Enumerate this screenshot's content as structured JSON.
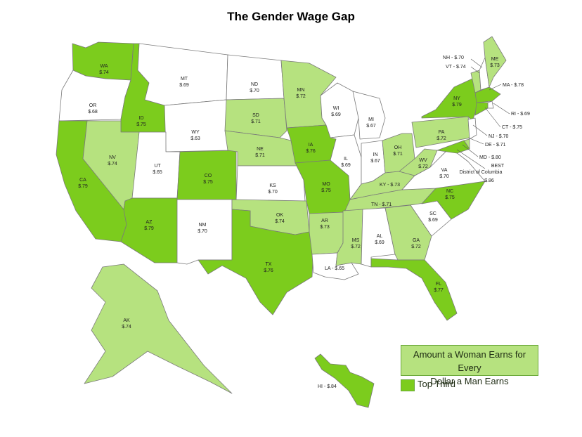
{
  "title": "The Gender Wage Gap",
  "colors": {
    "top_third": "#7ccc1d",
    "middle_third": "#b6e27f",
    "bottom_third": "#ffffff",
    "border": "#7a7a7a"
  },
  "legend": {
    "middle_line1": "Amount a Woman Earns for Every",
    "middle_line2": "Dollar a Man Earns",
    "top_label": "Top Third"
  },
  "states": [
    {
      "code": "WA",
      "value": "$.74",
      "tier": "top"
    },
    {
      "code": "OR",
      "value": "$.68",
      "tier": "bottom"
    },
    {
      "code": "CA",
      "value": "$.79",
      "tier": "top"
    },
    {
      "code": "ID",
      "value": "$.75",
      "tier": "top"
    },
    {
      "code": "NV",
      "value": "$.74",
      "tier": "middle"
    },
    {
      "code": "MT",
      "value": "$.69",
      "tier": "bottom"
    },
    {
      "code": "WY",
      "value": "$.63",
      "tier": "bottom"
    },
    {
      "code": "UT",
      "value": "$.65",
      "tier": "bottom"
    },
    {
      "code": "AZ",
      "value": "$.79",
      "tier": "top"
    },
    {
      "code": "CO",
      "value": "$.75",
      "tier": "top"
    },
    {
      "code": "NM",
      "value": "$.70",
      "tier": "bottom"
    },
    {
      "code": "ND",
      "value": "$.70",
      "tier": "bottom"
    },
    {
      "code": "SD",
      "value": "$.71",
      "tier": "middle"
    },
    {
      "code": "NE",
      "value": "$.71",
      "tier": "middle"
    },
    {
      "code": "KS",
      "value": "$.70",
      "tier": "bottom"
    },
    {
      "code": "OK",
      "value": "$.74",
      "tier": "middle"
    },
    {
      "code": "TX",
      "value": "$.76",
      "tier": "top"
    },
    {
      "code": "MN",
      "value": "$.72",
      "tier": "middle"
    },
    {
      "code": "IA",
      "value": "$.76",
      "tier": "top"
    },
    {
      "code": "MO",
      "value": "$.75",
      "tier": "top"
    },
    {
      "code": "AR",
      "value": "$.73",
      "tier": "middle"
    },
    {
      "code": "LA",
      "value": "$.65",
      "tier": "bottom"
    },
    {
      "code": "WI",
      "value": "$.69",
      "tier": "bottom"
    },
    {
      "code": "IL",
      "value": "$.69",
      "tier": "bottom"
    },
    {
      "code": "MI",
      "value": "$.67",
      "tier": "bottom"
    },
    {
      "code": "IN",
      "value": "$.67",
      "tier": "bottom"
    },
    {
      "code": "OH",
      "value": "$.71",
      "tier": "middle"
    },
    {
      "code": "KY",
      "value": "$.73",
      "tier": "middle"
    },
    {
      "code": "TN",
      "value": "$.71",
      "tier": "middle"
    },
    {
      "code": "MS",
      "value": "$.72",
      "tier": "middle"
    },
    {
      "code": "AL",
      "value": "$.69",
      "tier": "bottom"
    },
    {
      "code": "GA",
      "value": "$.72",
      "tier": "middle"
    },
    {
      "code": "FL",
      "value": "$.77",
      "tier": "top"
    },
    {
      "code": "SC",
      "value": "$.69",
      "tier": "bottom"
    },
    {
      "code": "NC",
      "value": "$.75",
      "tier": "top"
    },
    {
      "code": "VA",
      "value": "$.70",
      "tier": "bottom"
    },
    {
      "code": "WV",
      "value": "$.72",
      "tier": "middle"
    },
    {
      "code": "PA",
      "value": "$.72",
      "tier": "middle"
    },
    {
      "code": "NY",
      "value": "$.79",
      "tier": "top"
    },
    {
      "code": "VT",
      "value": "$.74",
      "tier": "middle"
    },
    {
      "code": "NH",
      "value": "$.70",
      "tier": "bottom"
    },
    {
      "code": "ME",
      "value": "$.73",
      "tier": "middle"
    },
    {
      "code": "MA",
      "value": "$.78",
      "tier": "top"
    },
    {
      "code": "RI",
      "value": "$.69",
      "tier": "bottom"
    },
    {
      "code": "CT",
      "value": "$.75",
      "tier": "top"
    },
    {
      "code": "NJ",
      "value": "$.70",
      "tier": "bottom"
    },
    {
      "code": "DE",
      "value": "$.71",
      "tier": "middle"
    },
    {
      "code": "MD",
      "value": "$.80",
      "tier": "top"
    },
    {
      "code": "DC",
      "value": "$.86",
      "tier": "top"
    },
    {
      "code": "AK",
      "value": "$.74",
      "tier": "middle"
    },
    {
      "code": "HI",
      "value": "$.84",
      "tier": "top"
    }
  ],
  "callouts": {
    "NH": "NH - $.70",
    "VT": "VT - $.74",
    "MA": "MA - $.78",
    "RI": "RI - $.69",
    "CT": "CT - $.75",
    "NJ": "NJ - $.70",
    "DE": "DE - $.71",
    "MD": "MD - $.80",
    "KY": "KY - $.73",
    "TN": "TN - $.71",
    "LA": "LA - $.65",
    "HI": "HI - $.84",
    "DC_line1": "BEST",
    "DC_line2": "District of Columbia",
    "DC_line3": "$.86"
  }
}
